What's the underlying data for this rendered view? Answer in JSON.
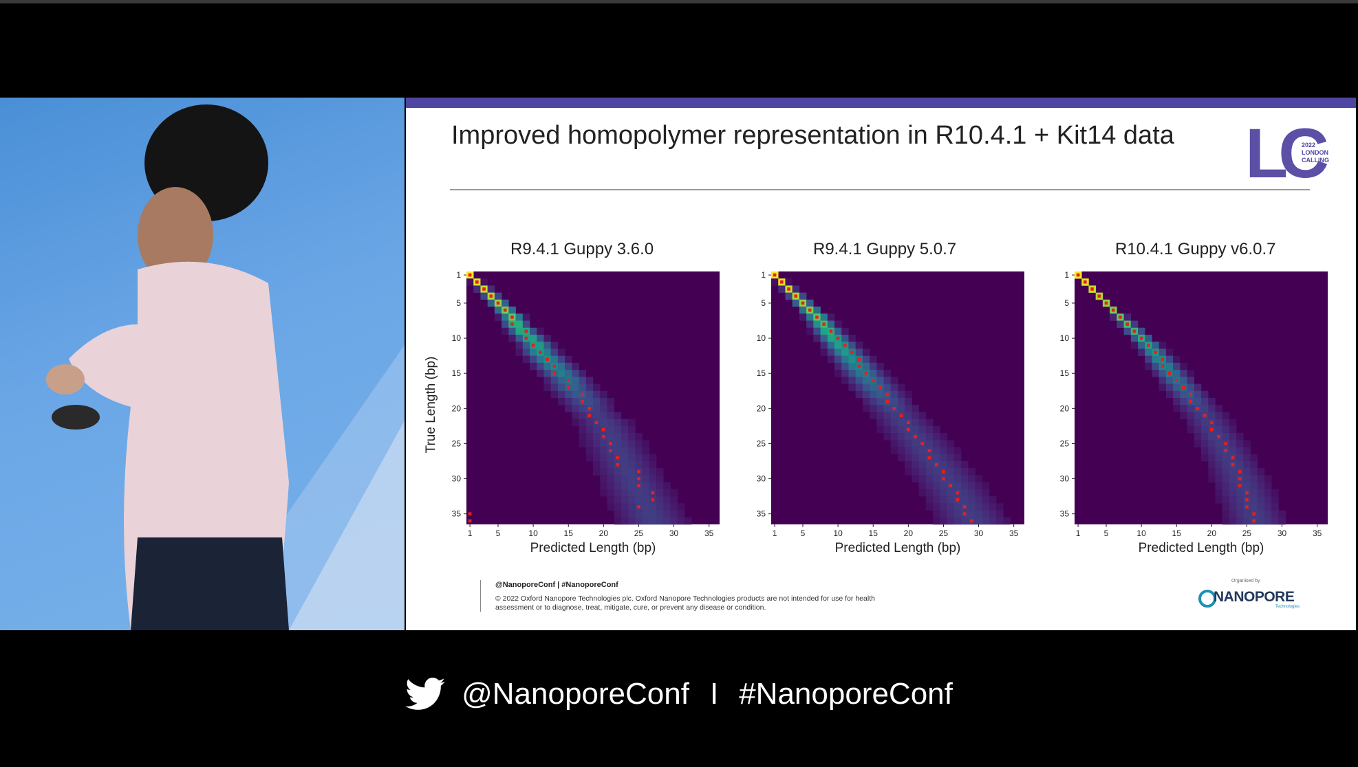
{
  "slide": {
    "title": "Improved homopolymer representation in R10.4.1 + Kit14 data",
    "logo_icon": "london-calling-2022-logo",
    "logo_text": [
      "2022",
      "LONDON",
      "CALLING"
    ],
    "footer_handles": "@NanoporeConf | #NanoporeConf",
    "footer_legal": "© 2022 Oxford Nanopore Technologies plc. Oxford Nanopore Technologies products are not intended for use for health assessment or to diagnose, treat, mitigate, cure, or prevent any disease or condition.",
    "sponsor_label": "Organised by",
    "sponsor_word": "NANOPORE",
    "sponsor_sub": "Technologies"
  },
  "caption": {
    "icon": "twitter-bird-icon",
    "handle": "@NanoporeConf",
    "separator": "I",
    "hashtag": "#NanoporeConf"
  },
  "colors": {
    "slide_bar": "#4f46a3",
    "heatmap_background": "#440154",
    "marker": "#e8201c"
  },
  "chart_data": [
    {
      "type": "heatmap",
      "title": "R9.4.1 Guppy 3.6.0",
      "xlabel": "Predicted Length (bp)",
      "ylabel": "True Length (bp)",
      "xticks": [
        1,
        5,
        10,
        15,
        20,
        25,
        30,
        35
      ],
      "yticks": [
        1,
        5,
        10,
        15,
        20,
        25,
        30,
        35
      ],
      "xlim": [
        1,
        36
      ],
      "ylim": [
        1,
        36
      ],
      "ridge_predicted": [
        1,
        2,
        3,
        4,
        5,
        6,
        7,
        7.5,
        8.5,
        9.5,
        10.5,
        11,
        12,
        13,
        14,
        15,
        15.5,
        16.5,
        17.5,
        18,
        19,
        20,
        20.5,
        21,
        21.5,
        22,
        22.5,
        23,
        23.5,
        24,
        24.5,
        25,
        25.5,
        26,
        26.5,
        27
      ],
      "ridge_spread": [
        0.3,
        0.4,
        0.5,
        0.6,
        0.7,
        0.8,
        0.9,
        1.0,
        1.1,
        1.2,
        1.3,
        1.4,
        1.5,
        1.6,
        1.7,
        1.8,
        1.9,
        2.0,
        2.1,
        2.2,
        2.3,
        2.4,
        2.5,
        2.5,
        2.6,
        2.6,
        2.7,
        2.7,
        2.8,
        2.8,
        2.9,
        2.9,
        3.0,
        3.0,
        3.1,
        3.1
      ],
      "modal_predicted": [
        1,
        2,
        3,
        4,
        5,
        6,
        7,
        7,
        9,
        9,
        10,
        11,
        12,
        13,
        13,
        15,
        15,
        17,
        17,
        18,
        18,
        19,
        20,
        20,
        21,
        21,
        22,
        22,
        25,
        25,
        25,
        27,
        27,
        25,
        1,
        1
      ]
    },
    {
      "type": "heatmap",
      "title": "R9.4.1 Guppy 5.0.7",
      "xlabel": "Predicted Length (bp)",
      "ylabel": "",
      "xticks": [
        1,
        5,
        10,
        15,
        20,
        25,
        30,
        35
      ],
      "yticks": [
        1,
        5,
        10,
        15,
        20,
        25,
        30,
        35
      ],
      "xlim": [
        1,
        36
      ],
      "ylim": [
        1,
        36
      ],
      "ridge_predicted": [
        1,
        2,
        3,
        4,
        5,
        6,
        7,
        7.8,
        8.6,
        9.4,
        10.3,
        11.1,
        12,
        12.8,
        13.6,
        14.5,
        15.3,
        16.1,
        17,
        17.8,
        18.6,
        19.4,
        20.2,
        21,
        21.8,
        22.5,
        23.2,
        24,
        24.7,
        25.4,
        26.1,
        26.8,
        27.4,
        28,
        28.6,
        29.2
      ],
      "ridge_spread": [
        0.3,
        0.4,
        0.5,
        0.6,
        0.7,
        0.8,
        0.9,
        1.0,
        1.1,
        1.2,
        1.3,
        1.4,
        1.5,
        1.6,
        1.7,
        1.8,
        1.9,
        2.0,
        2.1,
        2.2,
        2.3,
        2.4,
        2.5,
        2.5,
        2.6,
        2.6,
        2.7,
        2.7,
        2.8,
        2.8,
        2.9,
        2.9,
        3.0,
        3.0,
        3.1,
        3.1
      ],
      "modal_predicted": [
        1,
        2,
        3,
        4,
        5,
        6,
        7,
        8,
        9,
        10,
        11,
        12,
        13,
        13,
        14,
        15,
        16,
        17,
        17,
        18,
        19,
        20,
        20,
        21,
        22,
        23,
        23,
        24,
        25,
        25,
        26,
        27,
        27,
        28,
        28,
        29
      ]
    },
    {
      "type": "heatmap",
      "title": "R10.4.1 Guppy v6.0.7",
      "xlabel": "Predicted Length (bp)",
      "ylabel": "",
      "xticks": [
        1,
        5,
        10,
        15,
        20,
        25,
        30,
        35
      ],
      "yticks": [
        1,
        5,
        10,
        15,
        20,
        25,
        30,
        35
      ],
      "xlim": [
        1,
        36
      ],
      "ylim": [
        1,
        36
      ],
      "ridge_predicted": [
        1,
        2,
        3,
        4,
        5,
        6,
        7,
        8,
        9,
        10,
        11,
        11.8,
        12.6,
        13.4,
        14.2,
        15,
        15.8,
        16.6,
        17.4,
        18.2,
        19,
        19.6,
        20.2,
        20.8,
        21.4,
        22,
        22.5,
        23,
        23.5,
        24,
        24.4,
        24.8,
        25.2,
        25.6,
        26,
        26.3
      ],
      "ridge_spread": [
        0.2,
        0.2,
        0.3,
        0.3,
        0.4,
        0.4,
        0.5,
        0.6,
        0.7,
        0.8,
        0.9,
        1.0,
        1.1,
        1.2,
        1.3,
        1.4,
        1.5,
        1.6,
        1.7,
        1.8,
        1.9,
        2.0,
        2.0,
        2.1,
        2.1,
        2.2,
        2.2,
        2.3,
        2.3,
        2.4,
        2.4,
        2.5,
        2.5,
        2.5,
        2.6,
        2.6
      ],
      "modal_predicted": [
        1,
        2,
        3,
        4,
        5,
        6,
        7,
        8,
        9,
        10,
        11,
        12,
        13,
        13,
        14,
        15,
        16,
        17,
        17,
        18,
        19,
        20,
        20,
        21,
        22,
        22,
        23,
        23,
        24,
        24,
        24,
        25,
        25,
        25,
        26,
        26
      ]
    }
  ]
}
